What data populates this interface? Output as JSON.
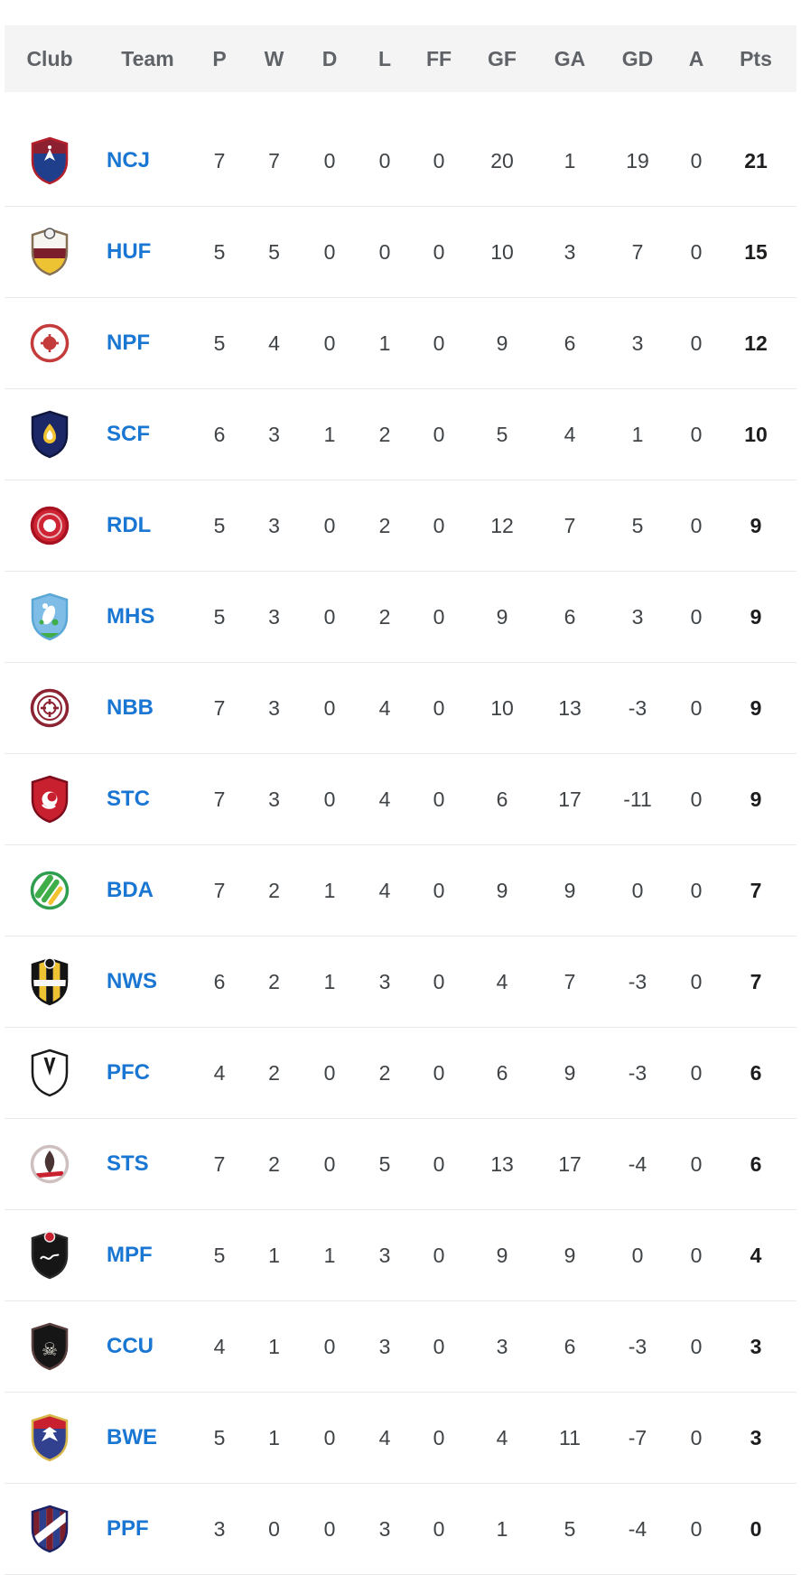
{
  "columns": [
    "Club",
    "Team",
    "P",
    "W",
    "D",
    "L",
    "FF",
    "GF",
    "GA",
    "GD",
    "A",
    "Pts"
  ],
  "colors": {
    "team_link": "#1976d2",
    "header_text": "#5f6368",
    "cell_text": "#3f4346",
    "pts_text": "#1d1d1f",
    "header_bg": "#f4f4f4",
    "divider": "#eaeaea"
  },
  "rows": [
    {
      "team": "NCJ",
      "stats": [
        7,
        7,
        0,
        0,
        0,
        20,
        1,
        19,
        0,
        21
      ],
      "logo": {
        "name": "ncj-jets-crest-icon",
        "shape": "shield",
        "border": "#b3202c",
        "bands": [
          {
            "c": "#8c2030",
            "f": 0.34
          },
          {
            "c": "#1f3e8c",
            "f": 0.66
          }
        ],
        "accent": {
          "kind": "jet",
          "color": "#ffffff"
        }
      }
    },
    {
      "team": "HUF",
      "stats": [
        5,
        5,
        0,
        0,
        0,
        10,
        3,
        7,
        0,
        15
      ],
      "logo": {
        "name": "huf-hills-united-crest-icon",
        "shape": "shield",
        "border": "#857055",
        "bands": [
          {
            "c": "#f7f5f0",
            "f": 0.42
          },
          {
            "c": "#7a1f2b",
            "f": 0.22
          },
          {
            "c": "#edc233",
            "f": 0.36
          }
        ],
        "ball": {
          "c": "#f0f0f0",
          "s": "#555555"
        }
      }
    },
    {
      "team": "NPF",
      "stats": [
        5,
        4,
        0,
        1,
        0,
        9,
        6,
        3,
        0,
        12
      ],
      "logo": {
        "name": "npf-crest-icon",
        "shape": "circle",
        "ring": "#c43b3b",
        "bg": "#ffffff",
        "core": "#c43b3b",
        "coreR": 7,
        "accent": {
          "kind": "cog",
          "color": "#c43b3b"
        }
      }
    },
    {
      "team": "SCF",
      "stats": [
        6,
        3,
        1,
        2,
        0,
        5,
        4,
        1,
        0,
        10
      ],
      "logo": {
        "name": "scf-flames-crest-icon",
        "shape": "shield",
        "border": "#10173f",
        "bands": [
          {
            "c": "#1b2767",
            "f": 1.0
          }
        ],
        "accent": {
          "kind": "flame",
          "color": "#f2c230",
          "color2": "#ffffff"
        }
      }
    },
    {
      "team": "RDL",
      "stats": [
        5,
        3,
        0,
        2,
        0,
        12,
        7,
        5,
        0,
        9
      ],
      "logo": {
        "name": "rdl-crest-icon",
        "shape": "circle",
        "ring": "#a81120",
        "bg": "#cf2433",
        "ring2": true,
        "ring2c": "#e9b8bc",
        "core": "#ffffff",
        "coreR": 7
      }
    },
    {
      "team": "MHS",
      "stats": [
        5,
        3,
        0,
        2,
        0,
        9,
        6,
        3,
        0,
        9
      ],
      "logo": {
        "name": "mhs-hakoah-crest-icon",
        "shape": "shield",
        "border": "#5aa7d6",
        "bands": [
          {
            "c": "#7fbde6",
            "f": 1.0
          }
        ],
        "accent": {
          "kind": "player",
          "color": "#ffffff",
          "color2": "#3fae49"
        }
      }
    },
    {
      "team": "NBB",
      "stats": [
        7,
        3,
        0,
        4,
        0,
        10,
        13,
        -3,
        0,
        9
      ],
      "logo": {
        "name": "nbb-crest-icon",
        "shape": "circle",
        "ring": "#8c2332",
        "bg": "#ffffff",
        "ring2": true,
        "ring2c": "#8c2332",
        "accent": {
          "kind": "cog",
          "color": "#8c2332"
        }
      }
    },
    {
      "team": "STC",
      "stats": [
        7,
        3,
        0,
        4,
        0,
        6,
        17,
        -11,
        0,
        9
      ],
      "logo": {
        "name": "stc-crest-icon",
        "shape": "shield",
        "border": "#7a0c1c",
        "bands": [
          {
            "c": "#c8202f",
            "f": 1.0
          }
        ],
        "accent": {
          "kind": "swirl",
          "color": "#ffffff"
        }
      }
    },
    {
      "team": "BDA",
      "stats": [
        7,
        2,
        1,
        4,
        0,
        9,
        9,
        0,
        0,
        7
      ],
      "logo": {
        "name": "bda-crest-icon",
        "shape": "circle",
        "ring": "#2f9e4f",
        "bg": "#ffffff",
        "accent": {
          "kind": "cstripes",
          "color": "#3fae49",
          "color2": "#f2c230"
        }
      }
    },
    {
      "team": "NWS",
      "stats": [
        6,
        2,
        1,
        3,
        0,
        4,
        7,
        -3,
        0,
        7
      ],
      "logo": {
        "name": "nws-spirit-fc-crest-icon",
        "shape": "shield",
        "border": "#141414",
        "stripes": {
          "colors": [
            "#141414",
            "#edc233"
          ],
          "n": 5
        },
        "ball": {
          "c": "#141414",
          "s": "#f7f7f7"
        },
        "accent": {
          "kind": "band",
          "color": "#f7f7f7"
        }
      }
    },
    {
      "team": "PFC",
      "stats": [
        4,
        2,
        0,
        2,
        0,
        6,
        9,
        -3,
        0,
        6
      ],
      "logo": {
        "name": "pfc-crest-icon",
        "shape": "shield",
        "border": "#1a1a1a",
        "bands": [
          {
            "c": "#ffffff",
            "f": 1.0
          }
        ],
        "accent": {
          "kind": "wing",
          "color": "#1a1a1a"
        }
      }
    },
    {
      "team": "STS",
      "stats": [
        7,
        2,
        0,
        5,
        0,
        13,
        17,
        -4,
        0,
        6
      ],
      "logo": {
        "name": "sts-crest-icon",
        "shape": "circle",
        "ring": "#cfc0c0",
        "bg": "#ffffff",
        "accent": {
          "kind": "figure",
          "color": "#4a3434",
          "color2": "#c8202f"
        }
      }
    },
    {
      "team": "MPF",
      "stats": [
        5,
        1,
        1,
        3,
        0,
        9,
        9,
        0,
        0,
        4
      ],
      "logo": {
        "name": "mpf-crest-icon",
        "shape": "shield",
        "border": "#2a2a2a",
        "bands": [
          {
            "c": "#161616",
            "f": 1.0
          }
        ],
        "ball": {
          "c": "#c8202f",
          "s": "#e8e8e8"
        },
        "accent": {
          "kind": "script",
          "color": "#ffffff"
        }
      }
    },
    {
      "team": "CCU",
      "stats": [
        4,
        1,
        0,
        3,
        0,
        3,
        6,
        -3,
        0,
        3
      ],
      "logo": {
        "name": "ccu-pirates-skull-crest-icon",
        "shape": "shield",
        "border": "#5a3f3f",
        "bands": [
          {
            "c": "#161616",
            "f": 1.0
          }
        ],
        "glyph": {
          "char": "☠",
          "color": "#e8e4da"
        }
      }
    },
    {
      "team": "BWE",
      "stats": [
        5,
        1,
        0,
        4,
        0,
        4,
        11,
        -7,
        0,
        3
      ],
      "logo": {
        "name": "bwe-white-eagles-crest-icon",
        "shape": "shield",
        "border": "#d8b84a",
        "bands": [
          {
            "c": "#c8202f",
            "f": 0.3
          },
          {
            "c": "#31418f",
            "f": 0.7
          }
        ],
        "accent": {
          "kind": "eagle",
          "color": "#ffffff"
        }
      }
    },
    {
      "team": "PPF",
      "stats": [
        3,
        0,
        0,
        3,
        0,
        1,
        5,
        -4,
        0,
        0
      ],
      "logo": {
        "name": "ppf-crest-icon",
        "shape": "shield",
        "border": "#1c2166",
        "stripes": {
          "colors": [
            "#7a1f2b",
            "#2b3f8c"
          ],
          "n": 5
        },
        "sash": "#ffffff"
      }
    }
  ]
}
